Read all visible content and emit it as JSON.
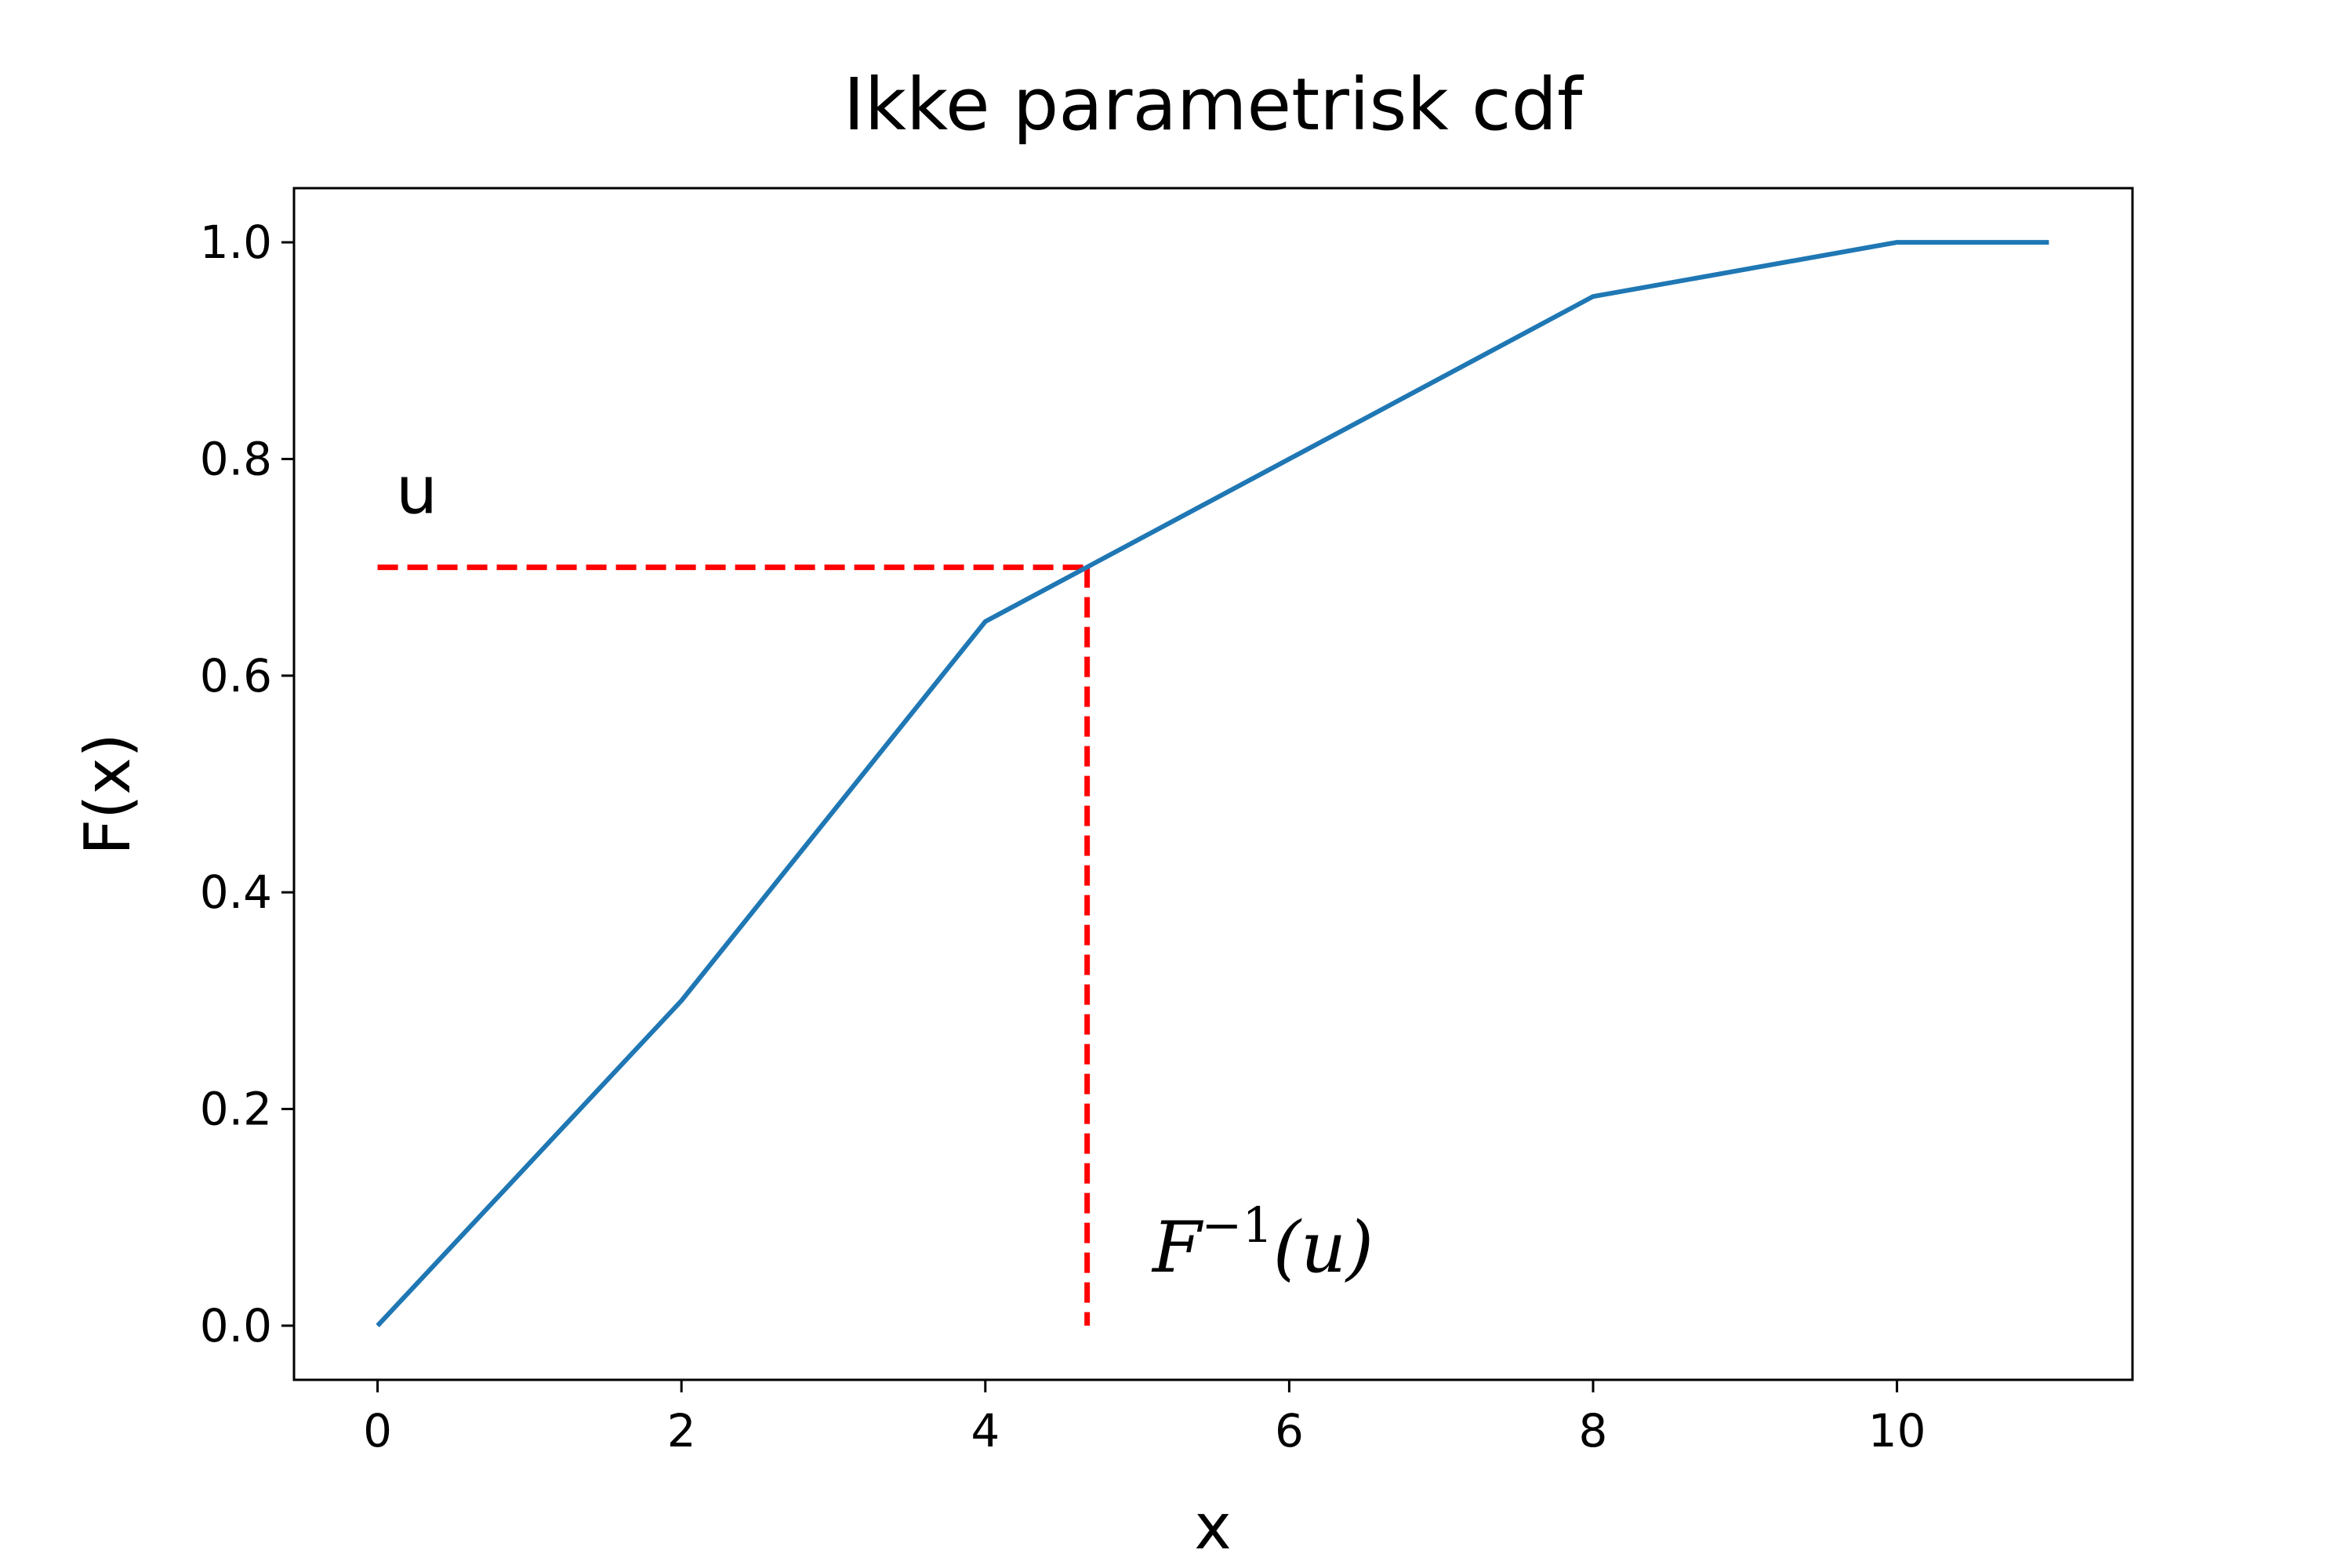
{
  "chart_data": {
    "type": "line",
    "title": "Ikke parametrisk cdf",
    "xlabel": "x",
    "ylabel": "F(x)",
    "xlim": [
      -0.55,
      11.55
    ],
    "ylim": [
      -0.05,
      1.05
    ],
    "xticks": [
      0,
      2,
      4,
      6,
      8,
      10
    ],
    "yticks": [
      0.0,
      0.2,
      0.4,
      0.6,
      0.8,
      1.0
    ],
    "xtick_labels": [
      "0",
      "2",
      "4",
      "6",
      "8",
      "10"
    ],
    "ytick_labels": [
      "0.0",
      "0.2",
      "0.4",
      "0.6",
      "0.8",
      "1.0"
    ],
    "grid": false,
    "series": [
      {
        "color": "#1f77b4",
        "x": [
          0,
          2,
          4,
          6,
          8,
          10,
          11
        ],
        "y": [
          0.0,
          0.3,
          0.65,
          0.8,
          0.95,
          1.0,
          1.0
        ]
      }
    ],
    "reference_lines": [
      {
        "style": "dashed",
        "color": "#ff0000",
        "x": [
          0,
          4.67
        ],
        "y": [
          0.7,
          0.7
        ]
      },
      {
        "style": "dashed",
        "color": "#ff0000",
        "x": [
          4.67,
          4.67
        ],
        "y": [
          0.7,
          0.0
        ]
      }
    ],
    "annotations": [
      {
        "text": "u",
        "x": 0.12,
        "y": 0.75
      },
      {
        "text_base": "F",
        "text_sup": "−1",
        "text_arg": "(u)",
        "x": 5.1,
        "y": 0.05
      }
    ]
  }
}
